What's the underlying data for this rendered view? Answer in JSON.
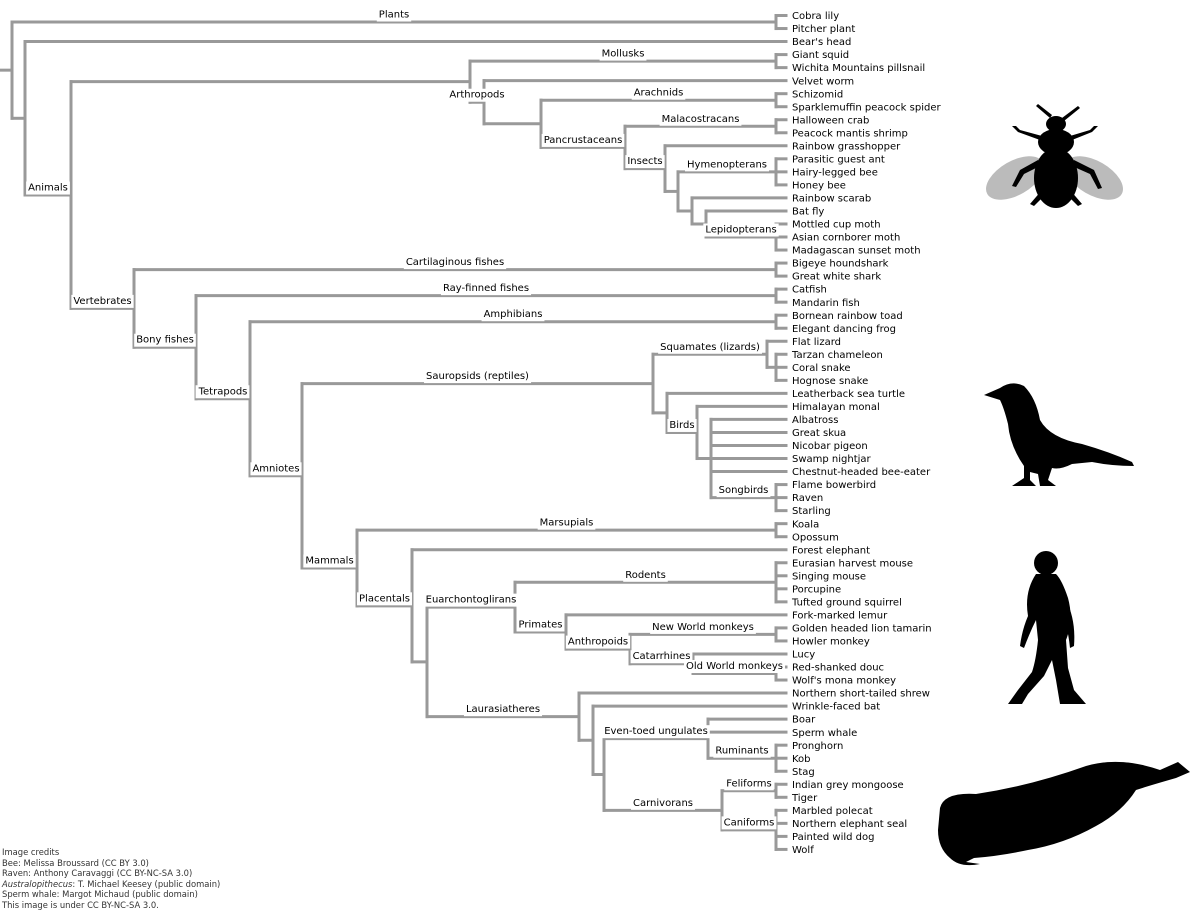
{
  "colors": {
    "branch": "#999999",
    "text": "#000000",
    "wing": "#bbbbbb"
  },
  "leaves": [
    "Cobra lily",
    "Pitcher plant",
    "Bear's head",
    "Giant squid",
    "Wichita Mountains pillsnail",
    "Velvet worm",
    "Schizomid",
    "Sparklemuffin peacock spider",
    "Halloween crab",
    "Peacock mantis shrimp",
    "Rainbow grasshopper",
    "Parasitic guest ant",
    "Hairy-legged bee",
    "Honey bee",
    "Rainbow scarab",
    "Bat fly",
    "Mottled cup moth",
    "Asian cornborer moth",
    "Madagascan sunset moth",
    "Bigeye houndshark",
    "Great white shark",
    "Catfish",
    "Mandarin fish",
    "Bornean rainbow toad",
    "Elegant dancing frog",
    "Flat lizard",
    "Tarzan chameleon",
    "Coral snake",
    "Hognose snake",
    "Leatherback sea turtle",
    "Himalayan monal",
    "Albatross",
    "Great skua",
    "Nicobar pigeon",
    "Swamp nightjar",
    "Chestnut-headed bee-eater",
    "Flame bowerbird",
    "Raven",
    "Starling",
    "Koala",
    "Opossum",
    "Forest elephant",
    "Eurasian harvest mouse",
    "Singing mouse",
    "Porcupine",
    "Tufted ground squirrel",
    "Fork-marked lemur",
    "Golden headed lion tamarin",
    "Howler monkey",
    "Lucy",
    "Red-shanked douc",
    "Wolf's mona monkey",
    "Northern short-tailed shrew",
    "Wrinkle-faced bat",
    "Boar",
    "Sperm whale",
    "Pronghorn",
    "Kob",
    "Stag",
    "Indian grey mongoose",
    "Tiger",
    "Marbled polecat",
    "Northern elephant seal",
    "Painted wild dog",
    "Wolf"
  ],
  "clades": {
    "plants": "Plants",
    "animals": "Animals",
    "mollusks": "Mollusks",
    "arthropods": "Arthropods",
    "arachnids": "Arachnids",
    "pancrustaceans": "Pancrustaceans",
    "malacostracans": "Malacostracans",
    "insects": "Insects",
    "hymenopterans": "Hymenopterans",
    "lepidopterans": "Lepidopterans",
    "vertebrates": "Vertebrates",
    "cartilaginous_fishes": "Cartilaginous fishes",
    "bony_fishes": "Bony fishes",
    "ray_finned_fishes": "Ray-finned fishes",
    "tetrapods": "Tetrapods",
    "amphibians": "Amphibians",
    "amniotes": "Amniotes",
    "sauropsids": "Sauropsids (reptiles)",
    "squamates": "Squamates (lizards)",
    "birds": "Birds",
    "songbirds": "Songbirds",
    "mammals": "Mammals",
    "marsupials": "Marsupials",
    "placentals": "Placentals",
    "euarchontoglirans": "Euarchontoglirans",
    "rodents": "Rodents",
    "primates": "Primates",
    "anthropoids": "Anthropoids",
    "new_world_monkeys": "New World monkeys",
    "catarrhines": "Catarrhines",
    "old_world_monkeys": "Old World monkeys",
    "laurasiatheres": "Laurasiatheres",
    "even_toed_ungulates": "Even-toed ungulates",
    "ruminants": "Ruminants",
    "carnivorans": "Carnivorans",
    "feliforms": "Feliforms",
    "caniforms": "Caniforms"
  },
  "silhouettes": [
    "bee-silhouette",
    "raven-silhouette",
    "australopithecus-silhouette",
    "sperm-whale-silhouette"
  ],
  "credits": {
    "heading": "Image credits",
    "bee": "Bee: Melissa Broussard (CC BY 3.0)",
    "raven": "Raven: Anthony Caravaggi (CC BY-NC-SA 3.0)",
    "australopithecus_name": "Australopithecus",
    "australopithecus_rest": ": T. Michael Keesey (public domain)",
    "sperm_whale": "Sperm whale: Margot Michaud (public domain)",
    "license": "This image is under CC BY-NC-SA 3.0."
  }
}
